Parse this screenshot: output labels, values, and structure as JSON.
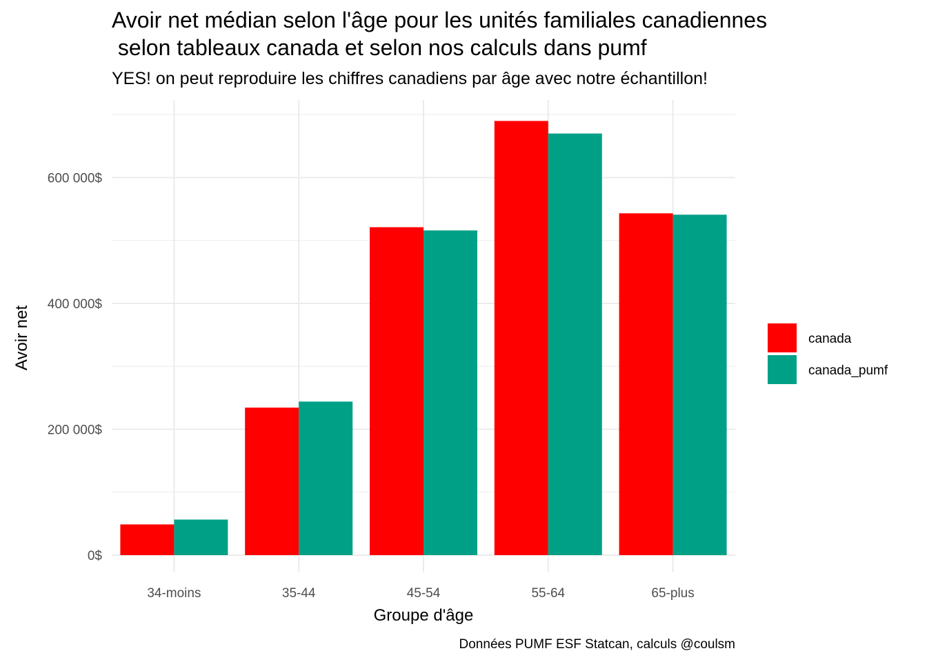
{
  "chart_data": {
    "type": "bar",
    "title_line1": "Avoir net médian selon l'âge pour les unités familiales canadiennes",
    "title_line2": " selon tableaux canada et selon nos calculs dans pumf",
    "subtitle": "YES! on peut reproduire les chiffres canadiens par âge avec notre échantillon!",
    "xlabel": "Groupe d'âge",
    "ylabel": "Avoir net",
    "caption": "Données PUMF ESF Statcan, calculs @coulsm",
    "categories": [
      "34-moins",
      "35-44",
      "45-54",
      "55-64",
      "65-plus"
    ],
    "series": [
      {
        "name": "canada",
        "color": "#ff0000",
        "values": [
          48800,
          234400,
          521100,
          690000,
          543200
        ]
      },
      {
        "name": "canada_pumf",
        "color": "#00a087",
        "values": [
          56500,
          244000,
          516000,
          670000,
          541000
        ]
      }
    ],
    "ylim": [
      0,
      700000
    ],
    "y_ticks": [
      {
        "value": 0,
        "label": "0$"
      },
      {
        "value": 200000,
        "label": "200 000$"
      },
      {
        "value": 400000,
        "label": "400 000$"
      },
      {
        "value": 600000,
        "label": "600 000$"
      }
    ],
    "y_minor_ticks": [
      100000,
      300000,
      500000,
      700000
    ],
    "grid": true,
    "legend_position": "right"
  }
}
